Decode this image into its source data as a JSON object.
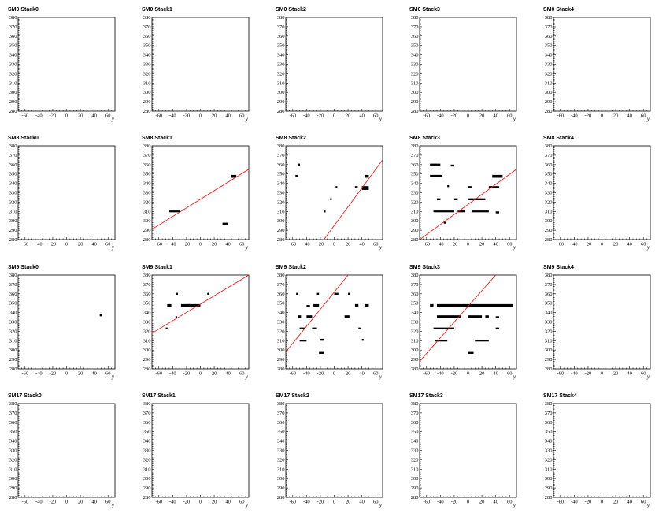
{
  "chart_data": {
    "type": "scatter",
    "pad_titles": [
      [
        "SM0 Stack0",
        "SM0 Stack1",
        "SM0 Stack2",
        "SM0 Stack3",
        "SM0 Stack4"
      ],
      [
        "SM8 Stack0",
        "SM8 Stack1",
        "SM8 Stack2",
        "SM8 Stack3",
        "SM8 Stack4"
      ],
      [
        "SM9 Stack0",
        "SM9 Stack1",
        "SM9 Stack2",
        "SM9 Stack3",
        "SM9 Stack4"
      ],
      [
        "SM17 Stack0",
        "SM17 Stack1",
        "SM17 Stack2",
        "SM17 Stack3",
        "SM17 Stack4"
      ]
    ],
    "xlabel": "y",
    "ylabel": "",
    "xlim": [
      -70,
      70
    ],
    "ylim": [
      280,
      380
    ],
    "xticks": [
      -60,
      -40,
      -20,
      0,
      20,
      40,
      60
    ],
    "yticks": [
      280,
      290,
      300,
      310,
      320,
      330,
      340,
      350,
      360,
      370,
      380
    ],
    "hit_colors": {
      "hits": "#000000",
      "fit": "#ff0000"
    },
    "pads": [
      {
        "row": 1,
        "col": 1,
        "segments": [
          [
            -45,
            310,
            -30,
            311
          ],
          [
            32,
            296,
            40,
            298
          ],
          [
            44,
            346,
            52,
            349
          ]
        ],
        "fit": [
          [
            -70,
            291
          ],
          [
            70,
            355
          ]
        ]
      },
      {
        "row": 1,
        "col": 2,
        "segments": [
          [
            -56,
            347,
            -53,
            349
          ],
          [
            -52,
            359,
            -50,
            361
          ],
          [
            -15,
            309,
            -13,
            311
          ],
          [
            -6,
            323,
            -4,
            324
          ],
          [
            2,
            335,
            4,
            337
          ],
          [
            30,
            335,
            34,
            337
          ],
          [
            40,
            333,
            50,
            337
          ],
          [
            44,
            346,
            50,
            349
          ]
        ],
        "fit": [
          [
            -15,
            280
          ],
          [
            70,
            365
          ]
        ]
      },
      {
        "row": 1,
        "col": 3,
        "segments": [
          [
            -55,
            359,
            -40,
            361
          ],
          [
            -55,
            347,
            -38,
            349
          ],
          [
            -25,
            358,
            -20,
            360
          ],
          [
            -30,
            336,
            -28,
            338
          ],
          [
            -50,
            310,
            -20,
            311
          ],
          [
            -15,
            310,
            -5,
            311
          ],
          [
            5,
            310,
            30,
            311
          ],
          [
            -45,
            322,
            -40,
            324
          ],
          [
            -20,
            322,
            -15,
            324
          ],
          [
            0,
            322,
            25,
            324
          ],
          [
            0,
            335,
            5,
            337
          ],
          [
            30,
            335,
            45,
            337
          ],
          [
            35,
            346,
            50,
            349
          ],
          [
            40,
            308,
            45,
            310
          ],
          [
            -35,
            297,
            -33,
            299
          ],
          [
            -10,
            310,
            -5,
            312
          ]
        ],
        "fit": [
          [
            -70,
            280
          ],
          [
            70,
            355
          ]
        ]
      },
      {
        "row": 2,
        "col": 0,
        "segments": [
          [
            48,
            336,
            51,
            338
          ]
        ],
        "fit": null
      },
      {
        "row": 2,
        "col": 1,
        "segments": [
          [
            -50,
            322,
            -48,
            324
          ],
          [
            -48,
            346,
            -42,
            349
          ],
          [
            -36,
            334,
            -34,
            336
          ],
          [
            -35,
            359,
            -33,
            361
          ],
          [
            -28,
            346,
            -15,
            349
          ],
          [
            -18,
            346,
            0,
            349
          ],
          [
            10,
            359,
            13,
            361
          ]
        ],
        "fit": [
          [
            -70,
            318
          ],
          [
            70,
            380
          ]
        ]
      },
      {
        "row": 2,
        "col": 2,
        "segments": [
          [
            -55,
            359,
            -52,
            361
          ],
          [
            -52,
            334,
            -48,
            337
          ],
          [
            -50,
            322,
            -42,
            324
          ],
          [
            -50,
            310,
            -40,
            311
          ],
          [
            -40,
            334,
            -32,
            337
          ],
          [
            -40,
            346,
            -35,
            348
          ],
          [
            -32,
            322,
            -25,
            324
          ],
          [
            -30,
            346,
            -22,
            349
          ],
          [
            -25,
            359,
            -22,
            361
          ],
          [
            -22,
            296,
            -15,
            298
          ],
          [
            -20,
            310,
            -15,
            312
          ],
          [
            0,
            359,
            6,
            361
          ],
          [
            15,
            334,
            22,
            337
          ],
          [
            20,
            359,
            22,
            361
          ],
          [
            30,
            346,
            35,
            349
          ],
          [
            35,
            322,
            38,
            324
          ],
          [
            40,
            310,
            42,
            312
          ],
          [
            44,
            346,
            50,
            349
          ]
        ],
        "fit": [
          [
            -70,
            298
          ],
          [
            20,
            380
          ]
        ]
      },
      {
        "row": 2,
        "col": 3,
        "segments": [
          [
            -55,
            346,
            -50,
            349
          ],
          [
            -45,
            346,
            0,
            349
          ],
          [
            0,
            346,
            65,
            349
          ],
          [
            -45,
            334,
            -10,
            337
          ],
          [
            0,
            334,
            20,
            337
          ],
          [
            -50,
            322,
            -20,
            324
          ],
          [
            -48,
            310,
            -30,
            311
          ],
          [
            0,
            296,
            8,
            298
          ],
          [
            10,
            310,
            30,
            311
          ],
          [
            25,
            334,
            30,
            337
          ],
          [
            40,
            322,
            45,
            324
          ],
          [
            40,
            334,
            45,
            336
          ]
        ],
        "fit": [
          [
            -70,
            288
          ],
          [
            40,
            380
          ]
        ]
      }
    ]
  }
}
